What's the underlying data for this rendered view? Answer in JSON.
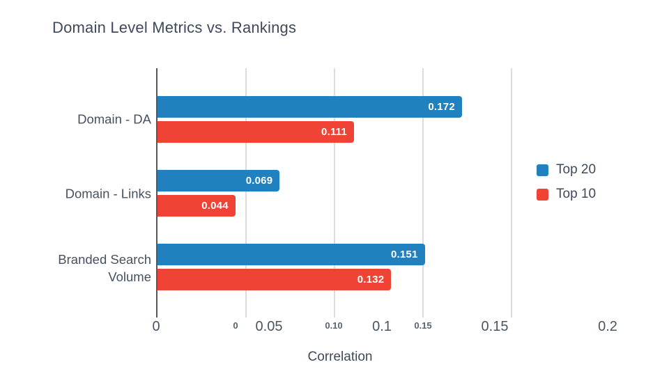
{
  "title": "Domain Level Metrics vs. Rankings",
  "chart_data": {
    "type": "bar",
    "orientation": "horizontal",
    "title": "Domain Level Metrics vs. Rankings",
    "xlabel": "Correlation",
    "categories": [
      "Domain - DA",
      "Domain - Links",
      "Branded Search Volume"
    ],
    "series": [
      {
        "name": "Top 20",
        "color": "#2081BE",
        "values": [
          0.172,
          0.069,
          0.151
        ],
        "value_labels": [
          "0.172",
          "0.069",
          "0.151"
        ]
      },
      {
        "name": "Top 10",
        "color": "#EE4335",
        "values": [
          0.111,
          0.044,
          0.132
        ],
        "value_labels": [
          "0.111",
          "0.044",
          "0.132"
        ]
      }
    ],
    "xlim": [
      0,
      0.2
    ],
    "x_ticks_large": [
      "0",
      "0.05",
      "0.1",
      "0.15",
      "0.2"
    ],
    "x_ticks_small": [
      "0",
      "0.10",
      "0.15"
    ],
    "grid": true,
    "legend_position": "right",
    "colors": {
      "top20": "#2081BE",
      "top10": "#EE4335",
      "gridline": "#DCDCDC",
      "axis_line": "#575757",
      "text_dark": "#3E4A59"
    }
  },
  "legend": {
    "items": [
      {
        "label": "Top 20",
        "color": "#2081BE"
      },
      {
        "label": "Top 10",
        "color": "#EE4335"
      }
    ]
  }
}
